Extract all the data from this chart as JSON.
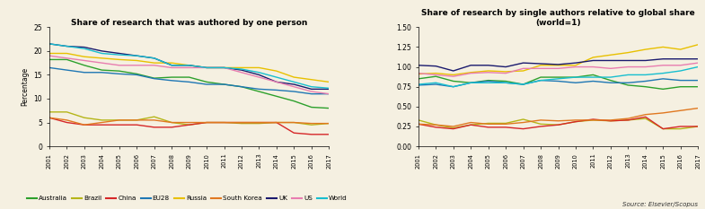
{
  "years": [
    2001,
    2002,
    2003,
    2004,
    2005,
    2006,
    2007,
    2008,
    2009,
    2010,
    2011,
    2012,
    2013,
    2014,
    2015,
    2016,
    2017
  ],
  "left_chart": {
    "title": "Share of research that was authored by one person",
    "ylabel": "Percentage",
    "ylim": [
      0,
      25
    ],
    "yticks": [
      0,
      5,
      10,
      15,
      20,
      25
    ],
    "series": {
      "Australia": [
        18.2,
        18.2,
        17.0,
        16.0,
        15.8,
        15.2,
        14.3,
        14.5,
        14.5,
        13.5,
        13.0,
        12.5,
        11.5,
        10.5,
        9.5,
        8.2,
        8.0
      ],
      "Brazil": [
        7.2,
        7.2,
        6.0,
        5.5,
        5.5,
        5.5,
        6.2,
        5.0,
        4.5,
        5.0,
        5.0,
        4.8,
        4.8,
        5.0,
        5.0,
        4.5,
        4.8
      ],
      "China": [
        6.0,
        5.0,
        4.5,
        4.5,
        4.5,
        4.5,
        4.0,
        4.0,
        4.5,
        5.0,
        5.0,
        5.0,
        5.0,
        5.0,
        2.8,
        2.5,
        2.5
      ],
      "EU28": [
        16.5,
        16.0,
        15.5,
        15.5,
        15.2,
        15.0,
        14.2,
        13.8,
        13.5,
        13.0,
        13.0,
        12.5,
        12.0,
        11.8,
        11.5,
        11.0,
        11.0
      ],
      "Russia": [
        19.5,
        19.5,
        18.8,
        18.5,
        18.2,
        18.0,
        17.5,
        17.5,
        17.0,
        16.5,
        16.5,
        16.5,
        16.5,
        15.8,
        14.5,
        14.0,
        13.5
      ],
      "South Korea": [
        6.0,
        5.5,
        4.5,
        5.0,
        5.5,
        5.5,
        5.5,
        5.0,
        5.0,
        5.0,
        5.0,
        5.0,
        5.0,
        5.0,
        5.0,
        4.8,
        4.8
      ],
      "UK": [
        21.5,
        21.0,
        20.8,
        20.0,
        19.5,
        19.0,
        18.5,
        17.0,
        17.0,
        16.5,
        16.5,
        16.0,
        15.0,
        13.5,
        13.0,
        12.0,
        12.0
      ],
      "US": [
        19.0,
        18.5,
        18.0,
        17.5,
        17.0,
        17.0,
        17.0,
        16.5,
        16.5,
        16.5,
        16.5,
        15.5,
        14.5,
        13.5,
        12.5,
        11.5,
        11.0
      ],
      "World": [
        21.5,
        21.0,
        20.5,
        19.5,
        19.2,
        19.0,
        18.5,
        17.0,
        17.0,
        16.5,
        16.5,
        16.2,
        15.5,
        14.5,
        13.5,
        12.5,
        12.2
      ]
    }
  },
  "right_chart": {
    "title": "Share of research by single authors relative to global share\n(world=1)",
    "ylim": [
      0,
      1.5
    ],
    "yticks": [
      0,
      0.25,
      0.5,
      0.75,
      1.0,
      1.25,
      1.5
    ],
    "series": {
      "Australia": [
        0.85,
        0.88,
        0.82,
        0.8,
        0.83,
        0.82,
        0.78,
        0.87,
        0.87,
        0.87,
        0.9,
        0.83,
        0.77,
        0.75,
        0.72,
        0.75,
        0.75
      ],
      "Brazil": [
        0.33,
        0.27,
        0.23,
        0.27,
        0.29,
        0.29,
        0.34,
        0.28,
        0.27,
        0.31,
        0.33,
        0.32,
        0.33,
        0.35,
        0.22,
        0.22,
        0.25
      ],
      "China": [
        0.28,
        0.24,
        0.22,
        0.27,
        0.24,
        0.24,
        0.22,
        0.25,
        0.27,
        0.31,
        0.34,
        0.32,
        0.33,
        0.37,
        0.22,
        0.25,
        0.25
      ],
      "EU28": [
        0.77,
        0.78,
        0.75,
        0.8,
        0.82,
        0.8,
        0.78,
        0.83,
        0.82,
        0.8,
        0.82,
        0.8,
        0.8,
        0.82,
        0.85,
        0.83,
        0.83
      ],
      "Russia": [
        0.91,
        0.92,
        0.9,
        0.93,
        0.95,
        0.94,
        0.95,
        1.02,
        1.02,
        1.02,
        1.12,
        1.15,
        1.18,
        1.22,
        1.25,
        1.22,
        1.28
      ],
      "South Korea": [
        0.28,
        0.27,
        0.25,
        0.3,
        0.28,
        0.28,
        0.3,
        0.33,
        0.32,
        0.33,
        0.33,
        0.33,
        0.35,
        0.4,
        0.42,
        0.45,
        0.48
      ],
      "UK": [
        1.02,
        1.01,
        0.95,
        1.02,
        1.02,
        1.0,
        1.05,
        1.04,
        1.03,
        1.05,
        1.08,
        1.08,
        1.08,
        1.08,
        1.1,
        1.1,
        1.1
      ],
      "US": [
        0.92,
        0.9,
        0.88,
        0.92,
        0.93,
        0.92,
        0.98,
        0.98,
        0.98,
        1.0,
        1.0,
        0.98,
        1.0,
        1.0,
        1.02,
        1.02,
        1.05
      ],
      "World": [
        0.78,
        0.8,
        0.75,
        0.8,
        0.8,
        0.8,
        0.78,
        0.83,
        0.85,
        0.87,
        0.87,
        0.87,
        0.9,
        0.9,
        0.92,
        0.95,
        1.0
      ]
    }
  },
  "colors": {
    "Australia": "#2ca02c",
    "Brazil": "#b5b518",
    "China": "#d62728",
    "EU28": "#1f77b4",
    "Russia": "#e8c000",
    "South Korea": "#e07820",
    "UK": "#1a1a6e",
    "US": "#e87db0",
    "World": "#17becf"
  },
  "background_color": "#f5f0e1",
  "source_text": "Source: Elsevier/Scopus"
}
